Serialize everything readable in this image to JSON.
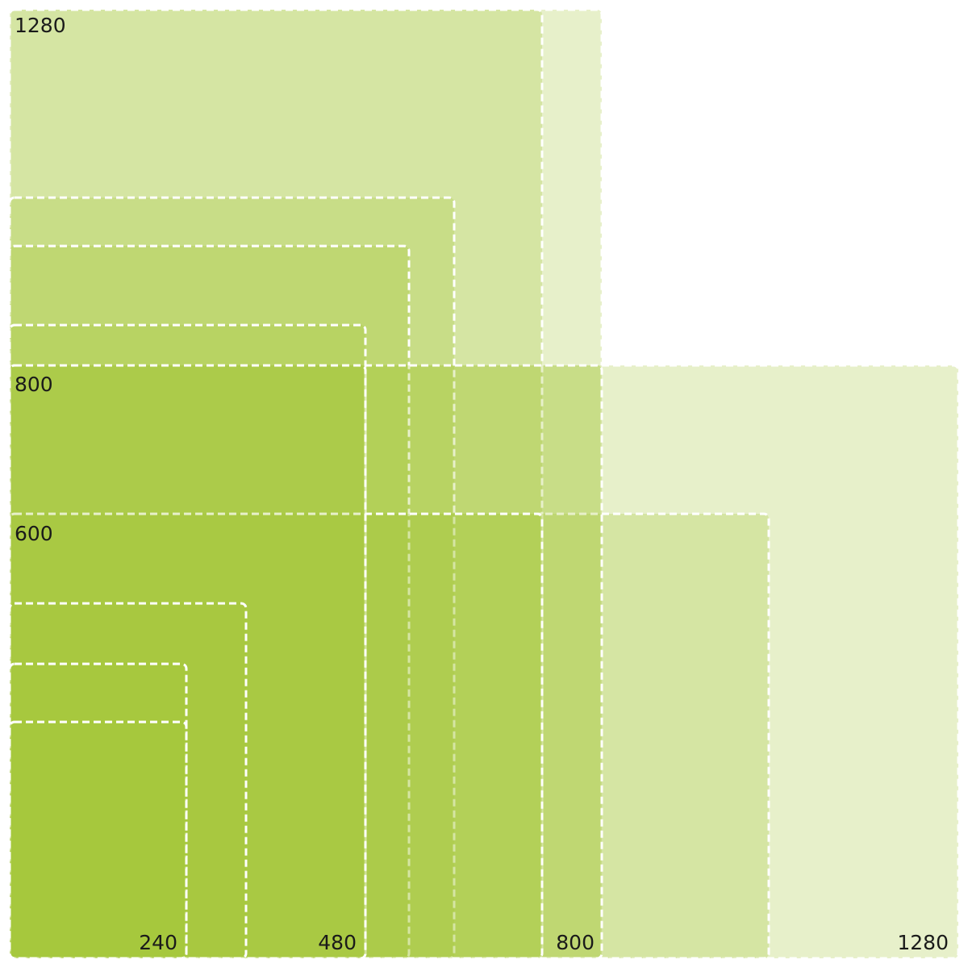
{
  "colors": {
    "fill": "#a5c63b",
    "outline": "#ffffff",
    "label": "#1a1a1a"
  },
  "height_labels": [
    "1280",
    "800",
    "600"
  ],
  "width_labels": [
    "240",
    "480",
    "800",
    "1280"
  ]
}
